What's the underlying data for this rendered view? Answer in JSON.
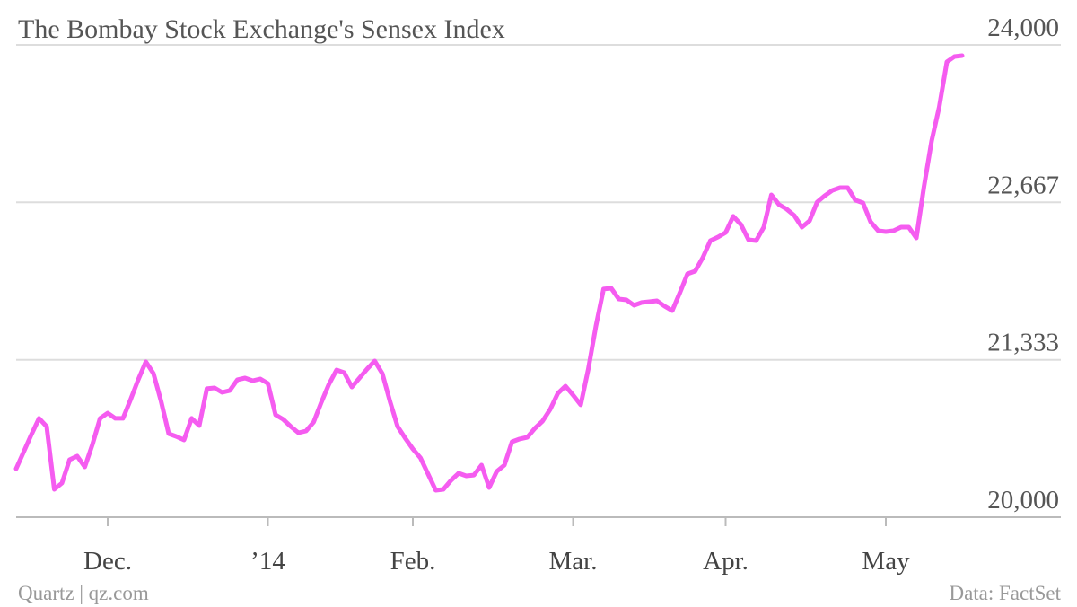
{
  "chart_data": {
    "type": "line",
    "title": "The Bombay Stock Exchange's Sensex Index",
    "credit": "Quartz | qz.com",
    "source": "Data: FactSet",
    "categories": [
      null,
      null,
      null,
      null,
      null,
      null,
      null,
      null,
      null,
      null,
      null,
      null,
      "Dec.",
      null,
      null,
      null,
      null,
      null,
      null,
      null,
      null,
      null,
      null,
      null,
      null,
      null,
      null,
      null,
      null,
      null,
      null,
      null,
      null,
      "’14",
      null,
      null,
      null,
      null,
      null,
      null,
      null,
      null,
      null,
      null,
      null,
      null,
      null,
      null,
      null,
      null,
      null,
      null,
      "Feb.",
      null,
      null,
      null,
      null,
      null,
      null,
      null,
      null,
      null,
      null,
      null,
      null,
      null,
      null,
      null,
      null,
      null,
      null,
      null,
      null,
      "Mar.",
      null,
      null,
      null,
      null,
      null,
      null,
      null,
      null,
      null,
      null,
      null,
      null,
      null,
      null,
      null,
      null,
      null,
      null,
      null,
      "Apr.",
      null,
      null,
      null,
      null,
      null,
      null,
      null,
      null,
      null,
      null,
      null,
      null,
      null,
      null,
      null,
      null,
      null,
      null,
      null,
      null,
      "May",
      null,
      null,
      null,
      null,
      null,
      null,
      null,
      null,
      null,
      null
    ],
    "series": [
      {
        "name": "Sensex",
        "color": "#f55cf0",
        "values": [
          20411,
          20555,
          20700,
          20837,
          20768,
          20236,
          20289,
          20487,
          20517,
          20426,
          20616,
          20837,
          20882,
          20837,
          20837,
          20996,
          21164,
          21316,
          21217,
          20981,
          20707,
          20684,
          20654,
          20837,
          20776,
          21088,
          21095,
          21057,
          21072,
          21164,
          21179,
          21156,
          21171,
          21133,
          20867,
          20829,
          20768,
          20715,
          20730,
          20806,
          20973,
          21126,
          21247,
          21224,
          21103,
          21179,
          21255,
          21323,
          21217,
          20981,
          20768,
          20669,
          20578,
          20502,
          20365,
          20228,
          20236,
          20312,
          20373,
          20350,
          20357,
          20441,
          20251,
          20388,
          20441,
          20639,
          20662,
          20677,
          20753,
          20814,
          20913,
          21049,
          21110,
          21034,
          20951,
          21255,
          21620,
          21932,
          21939,
          21848,
          21840,
          21795,
          21818,
          21825,
          21833,
          21787,
          21749,
          21901,
          22061,
          22084,
          22198,
          22342,
          22373,
          22411,
          22548,
          22479,
          22350,
          22342,
          22456,
          22730,
          22647,
          22609,
          22555,
          22456,
          22510,
          22669,
          22723,
          22768,
          22791,
          22791,
          22685,
          22662,
          22502,
          22426,
          22418,
          22426,
          22456,
          22456,
          22365,
          22799,
          23186,
          23475,
          23856,
          23901,
          23909
        ]
      }
    ],
    "ylim": [
      20000,
      24000
    ],
    "yticks": [
      {
        "value": 20000,
        "label": "20,000"
      },
      {
        "value": 21333,
        "label": "21,333"
      },
      {
        "value": 22667,
        "label": "22,667"
      },
      {
        "value": 24000,
        "label": "24,000"
      }
    ],
    "grid": true
  }
}
